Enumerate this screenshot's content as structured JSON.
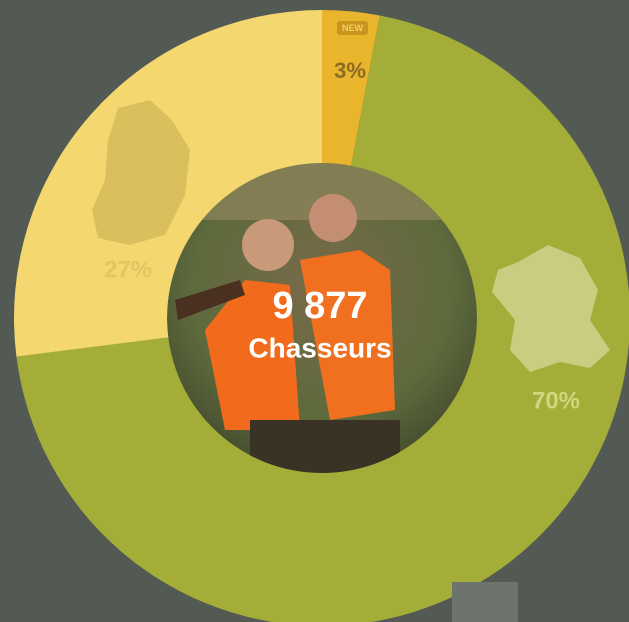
{
  "chart_data": {
    "type": "pie",
    "donut": true,
    "values": [
      3,
      70,
      27
    ],
    "value_labels": [
      "3%",
      "70%",
      "27%"
    ],
    "colors": [
      "#e9b52c",
      "#a4ad37",
      "#f5d76f"
    ],
    "label_colors": [
      "#8c6c22",
      "#d2d680",
      "#e3c661"
    ],
    "badge": "NEW",
    "center_value": "9 877",
    "center_label": "Chasseurs"
  }
}
